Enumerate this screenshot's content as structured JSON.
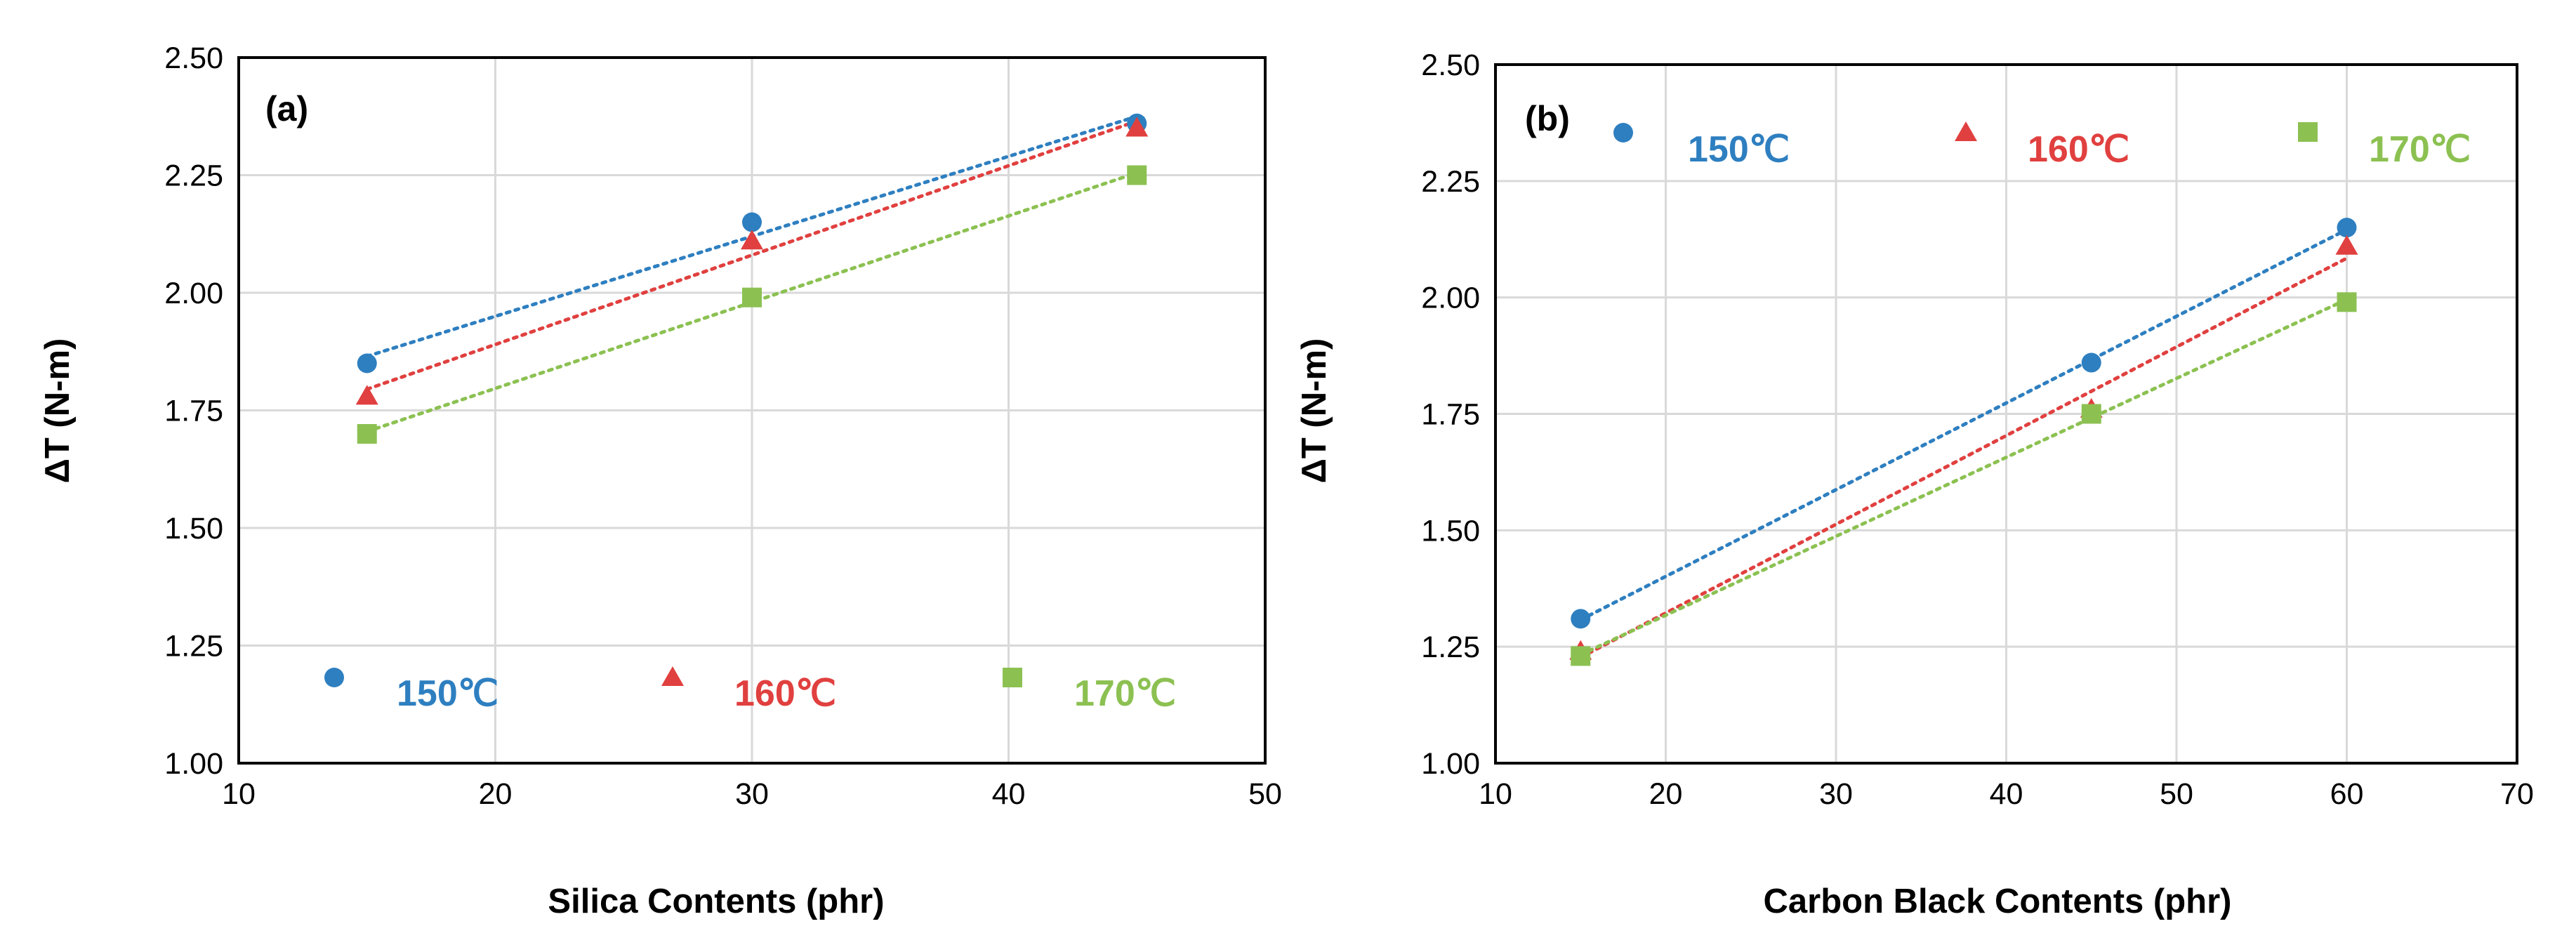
{
  "chart_data": [
    {
      "type": "scatter",
      "panel_label": "(a)",
      "xlabel": "Silica Contents (phr)",
      "ylabel": "ΔT (N-m)",
      "xlim": [
        10,
        50
      ],
      "ylim": [
        1.0,
        2.5
      ],
      "xticks": [
        10,
        20,
        30,
        40,
        50
      ],
      "yticks": [
        "1.00",
        "1.25",
        "1.50",
        "1.75",
        "2.00",
        "2.25",
        "2.50"
      ],
      "grid": true,
      "trendline": "linear, dotted",
      "legend_position": "bottom",
      "series": [
        {
          "name": "150℃",
          "marker": "circle",
          "color": "#2E7FC0",
          "x": [
            15,
            30,
            45
          ],
          "y": [
            1.85,
            2.15,
            2.36
          ]
        },
        {
          "name": "160℃",
          "marker": "triangle",
          "color": "#E0403F",
          "x": [
            15,
            30,
            45
          ],
          "y": [
            1.78,
            2.11,
            2.35
          ]
        },
        {
          "name": "170℃",
          "marker": "square",
          "color": "#8CC152",
          "x": [
            15,
            30,
            45
          ],
          "y": [
            1.7,
            1.99,
            2.25
          ]
        }
      ]
    },
    {
      "type": "scatter",
      "panel_label": "(b)",
      "xlabel": "Carbon Black Contents (phr)",
      "ylabel": "ΔT (N-m)",
      "xlim": [
        10,
        70
      ],
      "ylim": [
        1.0,
        2.5
      ],
      "xticks": [
        10,
        20,
        30,
        40,
        50,
        60,
        70
      ],
      "yticks": [
        "1.00",
        "1.25",
        "1.50",
        "1.75",
        "2.00",
        "2.25",
        "2.50"
      ],
      "grid": true,
      "trendline": "linear, dotted",
      "legend_position": "top",
      "series": [
        {
          "name": "150℃",
          "marker": "circle",
          "color": "#2E7FC0",
          "x": [
            15,
            45,
            60
          ],
          "y": [
            1.31,
            1.86,
            2.15
          ]
        },
        {
          "name": "160℃",
          "marker": "triangle",
          "color": "#E0403F",
          "x": [
            15,
            45,
            60
          ],
          "y": [
            1.24,
            1.76,
            2.11
          ]
        },
        {
          "name": "170℃",
          "marker": "square",
          "color": "#8CC152",
          "x": [
            15,
            45,
            60
          ],
          "y": [
            1.23,
            1.75,
            1.99
          ]
        }
      ]
    }
  ]
}
